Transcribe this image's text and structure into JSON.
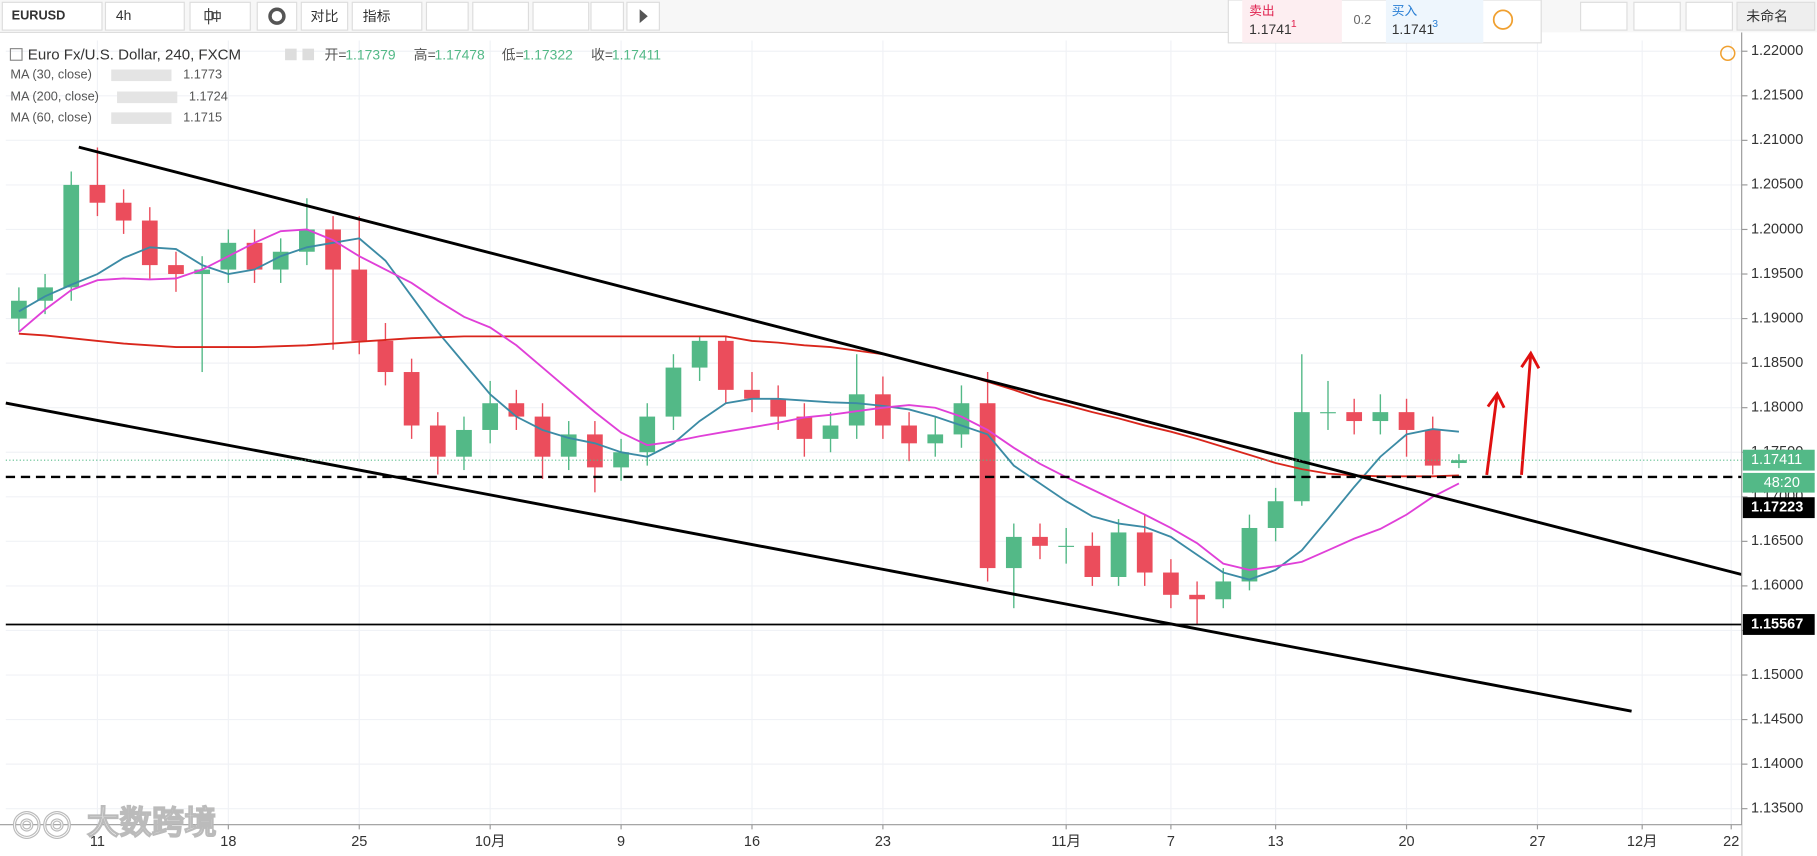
{
  "toolbar": {
    "symbol": "EURUSD",
    "interval": "4h",
    "compare": "对比",
    "indicators": "指标",
    "sell_label": "卖出",
    "sell_price": "1.1741",
    "sell_sup": "1",
    "spread": "0.2",
    "buy_label": "买入",
    "buy_price": "1.1741",
    "buy_sup": "3",
    "layout_name": "未命名"
  },
  "chart_data": {
    "type": "candlestick",
    "title": "Euro Fx/U.S. Dollar, 240, FXCM",
    "ohlc_legend": {
      "open_label": "开=",
      "open": "1.17379",
      "high_label": "高=",
      "high": "1.17478",
      "low_label": "低=",
      "low": "1.17322",
      "close_label": "收=",
      "close": "1.17411"
    },
    "x": [
      -3,
      -2,
      -1,
      0,
      1,
      2,
      3,
      4,
      5,
      6,
      7,
      8,
      9,
      10,
      11,
      12,
      13,
      14,
      15,
      16,
      17,
      18,
      19,
      20,
      21,
      22,
      23,
      24,
      25,
      26,
      27,
      28,
      29,
      30,
      31,
      32,
      33,
      34,
      35,
      36,
      37,
      38,
      39,
      40,
      41,
      42,
      43,
      44,
      45,
      46,
      47,
      48,
      49,
      50,
      51,
      52
    ],
    "open": [
      1.19,
      1.192,
      1.1935,
      1.205,
      1.203,
      1.201,
      1.196,
      1.195,
      1.1955,
      1.1985,
      1.1955,
      1.1975,
      1.2,
      1.1955,
      1.1875,
      1.184,
      1.178,
      1.1745,
      1.1775,
      1.1805,
      1.179,
      1.1745,
      1.177,
      1.1733,
      1.175,
      1.179,
      1.1845,
      1.1875,
      1.182,
      1.181,
      1.179,
      1.1765,
      1.178,
      1.1815,
      1.178,
      1.176,
      1.177,
      1.1805,
      1.162,
      1.1655,
      1.1645,
      1.1645,
      1.161,
      1.166,
      1.1615,
      1.159,
      1.1585,
      1.1605,
      1.1665,
      1.1695,
      1.1795,
      1.1795,
      1.1785,
      1.1795,
      1.1775,
      1.17379
    ],
    "high": [
      1.1935,
      1.195,
      1.2065,
      1.2092,
      1.2045,
      1.2025,
      1.1975,
      1.197,
      1.2,
      1.2,
      1.199,
      1.2035,
      1.2015,
      1.2015,
      1.1895,
      1.1855,
      1.1795,
      1.179,
      1.183,
      1.182,
      1.1805,
      1.1785,
      1.1785,
      1.1765,
      1.1805,
      1.186,
      1.188,
      1.188,
      1.184,
      1.1825,
      1.1805,
      1.1795,
      1.186,
      1.1835,
      1.1795,
      1.179,
      1.1825,
      1.184,
      1.167,
      1.167,
      1.1665,
      1.166,
      1.1675,
      1.168,
      1.163,
      1.1605,
      1.162,
      1.168,
      1.171,
      1.186,
      1.183,
      1.181,
      1.1815,
      1.181,
      1.179,
      1.17478
    ],
    "low": [
      1.1885,
      1.1905,
      1.192,
      1.2015,
      1.1995,
      1.1945,
      1.193,
      1.184,
      1.194,
      1.194,
      1.194,
      1.196,
      1.1865,
      1.186,
      1.1825,
      1.1765,
      1.1725,
      1.173,
      1.176,
      1.1775,
      1.172,
      1.173,
      1.1705,
      1.1718,
      1.1735,
      1.1775,
      1.183,
      1.1805,
      1.1795,
      1.1775,
      1.1745,
      1.175,
      1.1765,
      1.1765,
      1.174,
      1.1745,
      1.1755,
      1.1605,
      1.1575,
      1.163,
      1.1625,
      1.16,
      1.16,
      1.16,
      1.1575,
      1.1557,
      1.1575,
      1.1595,
      1.165,
      1.169,
      1.1775,
      1.177,
      1.177,
      1.1745,
      1.1725,
      1.17322
    ],
    "close": [
      1.192,
      1.1935,
      1.205,
      1.203,
      1.201,
      1.196,
      1.195,
      1.1955,
      1.1985,
      1.1955,
      1.1975,
      1.2,
      1.1955,
      1.1875,
      1.184,
      1.178,
      1.1745,
      1.1775,
      1.1805,
      1.179,
      1.1745,
      1.177,
      1.1733,
      1.175,
      1.179,
      1.1845,
      1.1875,
      1.182,
      1.181,
      1.179,
      1.1765,
      1.178,
      1.1815,
      1.178,
      1.176,
      1.177,
      1.1805,
      1.162,
      1.1655,
      1.1645,
      1.1645,
      1.161,
      1.166,
      1.1615,
      1.159,
      1.1585,
      1.1605,
      1.1665,
      1.1695,
      1.1795,
      1.1795,
      1.1785,
      1.1795,
      1.1775,
      1.1735,
      1.17411
    ],
    "up_color": "#53b987",
    "down_color": "#eb4d5c",
    "series": [
      {
        "name": "MA (30, close)",
        "color": "#3c8ba5",
        "legend_value": "1.1773",
        "values": [
          1.1908,
          1.1925,
          1.1938,
          1.195,
          1.1968,
          1.198,
          1.1978,
          1.196,
          1.195,
          1.1955,
          1.197,
          1.198,
          1.1985,
          1.199,
          1.1965,
          1.1925,
          1.1885,
          1.185,
          1.1815,
          1.179,
          1.1775,
          1.1766,
          1.176,
          1.175,
          1.1745,
          1.176,
          1.1785,
          1.1805,
          1.181,
          1.181,
          1.1808,
          1.1806,
          1.1805,
          1.1802,
          1.1798,
          1.179,
          1.178,
          1.177,
          1.1735,
          1.1715,
          1.1695,
          1.1678,
          1.167,
          1.1666,
          1.1655,
          1.1635,
          1.1615,
          1.1607,
          1.1618,
          1.164,
          1.1675,
          1.1711,
          1.1745,
          1.177,
          1.1776,
          1.1773
        ]
      },
      {
        "name": "MA (200, close)",
        "color": "#d9261c",
        "legend_value": "1.1724",
        "values": [
          1.1883,
          1.1881,
          1.1878,
          1.1875,
          1.1872,
          1.187,
          1.1868,
          1.1868,
          1.1868,
          1.1868,
          1.1869,
          1.187,
          1.1872,
          1.1874,
          1.1876,
          1.1878,
          1.1879,
          1.188,
          1.188,
          1.188,
          1.188,
          1.188,
          1.188,
          1.188,
          1.188,
          1.188,
          1.188,
          1.188,
          1.1875,
          1.1873,
          1.187,
          1.1868,
          1.1864,
          1.186,
          1.1853,
          1.1846,
          1.1838,
          1.1829,
          1.182,
          1.181,
          1.1803,
          1.1795,
          1.1788,
          1.178,
          1.1773,
          1.1765,
          1.1756,
          1.1747,
          1.1738,
          1.1731,
          1.1726,
          1.1724,
          1.1723,
          1.1723,
          1.1723,
          1.1724
        ]
      },
      {
        "name": "MA (60, close)",
        "color": "#e040d8",
        "legend_value": "1.1715",
        "values": [
          1.1885,
          1.191,
          1.1932,
          1.1943,
          1.1945,
          1.1944,
          1.1945,
          1.1955,
          1.197,
          1.1985,
          1.1998,
          1.2,
          1.1988,
          1.197,
          1.1955,
          1.194,
          1.192,
          1.1902,
          1.189,
          1.187,
          1.1845,
          1.182,
          1.1795,
          1.1772,
          1.1758,
          1.1762,
          1.1768,
          1.1773,
          1.1778,
          1.1783,
          1.1789,
          1.1792,
          1.1796,
          1.18,
          1.1803,
          1.18,
          1.179,
          1.1775,
          1.1755,
          1.1737,
          1.1722,
          1.1708,
          1.1694,
          1.168,
          1.1665,
          1.1648,
          1.1625,
          1.1618,
          1.1622,
          1.1627,
          1.164,
          1.1653,
          1.1664,
          1.168,
          1.17,
          1.1715
        ]
      }
    ],
    "xlim": [
      -3.5,
      62.8
    ],
    "xticks": [
      {
        "value": 0,
        "label": "11"
      },
      {
        "value": 5,
        "label": "18"
      },
      {
        "value": 10,
        "label": "25"
      },
      {
        "value": 15,
        "label": "10月"
      },
      {
        "value": 20,
        "label": "9"
      },
      {
        "value": 25,
        "label": "16"
      },
      {
        "value": 30,
        "label": "23"
      },
      {
        "value": 37,
        "label": "11月"
      },
      {
        "value": 41,
        "label": "7"
      },
      {
        "value": 45,
        "label": "13"
      },
      {
        "value": 50,
        "label": "20"
      },
      {
        "value": 55,
        "label": "27"
      },
      {
        "value": 59,
        "label": "12月"
      },
      {
        "value": 62.4,
        "label": "22"
      }
    ],
    "ylim": [
      1.1332,
      1.2212
    ],
    "yticks": [
      {
        "value": 1.22,
        "label": "1.22000"
      },
      {
        "value": 1.215,
        "label": "1.21500"
      },
      {
        "value": 1.21,
        "label": "1.21000"
      },
      {
        "value": 1.205,
        "label": "1.20500"
      },
      {
        "value": 1.2,
        "label": "1.20000"
      },
      {
        "value": 1.195,
        "label": "1.19500"
      },
      {
        "value": 1.19,
        "label": "1.19000"
      },
      {
        "value": 1.185,
        "label": "1.18500"
      },
      {
        "value": 1.18,
        "label": "1.18000"
      },
      {
        "value": 1.175,
        "label": "1.17500"
      },
      {
        "value": 1.17,
        "label": "1.17000"
      },
      {
        "value": 1.165,
        "label": "1.16500"
      },
      {
        "value": 1.16,
        "label": "1.16000"
      },
      {
        "value": 1.155,
        "label": "1.15500"
      },
      {
        "value": 1.15,
        "label": "1.15000"
      },
      {
        "value": 1.145,
        "label": "1.14500"
      },
      {
        "value": 1.14,
        "label": "1.14000"
      },
      {
        "value": 1.135,
        "label": "1.13500"
      }
    ],
    "grid": true,
    "last_price": {
      "value": 1.17411,
      "label": "1.17411",
      "color": "#53b987"
    },
    "countdown": "48:20",
    "horizontal_lines": [
      {
        "value": 1.17223,
        "label": "1.17223",
        "style": "dashed"
      },
      {
        "value": 1.15567,
        "label": "1.15567",
        "style": "solid"
      }
    ],
    "watermark": "大数跨境"
  }
}
